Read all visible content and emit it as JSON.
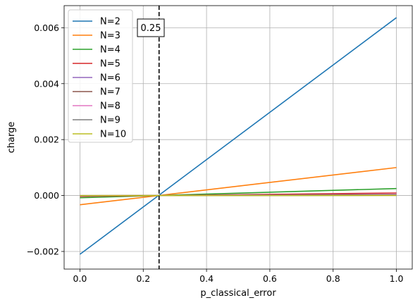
{
  "chart_data": {
    "type": "line",
    "xlabel": "p_classical_error",
    "ylabel": "charge",
    "xlim": [
      -0.05,
      1.05
    ],
    "ylim": [
      -0.00263,
      0.00679
    ],
    "xticks": [
      0.0,
      0.2,
      0.4,
      0.6,
      0.8,
      1.0
    ],
    "xtick_labels": [
      "0.0",
      "0.2",
      "0.4",
      "0.6",
      "0.8",
      "1.0"
    ],
    "yticks": [
      -0.002,
      0.0,
      0.002,
      0.004,
      0.006
    ],
    "ytick_labels": [
      "−0.002",
      "0.000",
      "0.002",
      "0.004",
      "0.006"
    ],
    "grid": true,
    "legend_position": "upper-left",
    "series": [
      {
        "name": "N=2",
        "color": "#1f77b4",
        "x": [
          0.0,
          1.0
        ],
        "y": [
          -0.0021,
          0.00636
        ]
      },
      {
        "name": "N=3",
        "color": "#ff7f0e",
        "x": [
          0.0,
          1.0
        ],
        "y": [
          -0.00033,
          0.001
        ]
      },
      {
        "name": "N=4",
        "color": "#2ca02c",
        "x": [
          0.0,
          1.0
        ],
        "y": [
          -8e-05,
          0.00025
        ]
      },
      {
        "name": "N=5",
        "color": "#d62728",
        "x": [
          0.0,
          1.0
        ],
        "y": [
          -3e-05,
          9e-05
        ]
      },
      {
        "name": "N=6",
        "color": "#9467bd",
        "x": [
          0.0,
          1.0
        ],
        "y": [
          -1e-05,
          4e-05
        ]
      },
      {
        "name": "N=7",
        "color": "#8c564b",
        "x": [
          0.0,
          1.0
        ],
        "y": [
          -6e-06,
          2e-05
        ]
      },
      {
        "name": "N=8",
        "color": "#e377c2",
        "x": [
          0.0,
          1.0
        ],
        "y": [
          -3e-06,
          1e-05
        ]
      },
      {
        "name": "N=9",
        "color": "#7f7f7f",
        "x": [
          0.0,
          1.0
        ],
        "y": [
          -2e-06,
          5e-06
        ]
      },
      {
        "name": "N=10",
        "color": "#bcbd22",
        "x": [
          0.0,
          1.0
        ],
        "y": [
          -1e-06,
          3e-06
        ]
      }
    ],
    "vline": {
      "x": 0.25,
      "label": "0.25",
      "color": "#000000",
      "style": "dashed"
    }
  }
}
